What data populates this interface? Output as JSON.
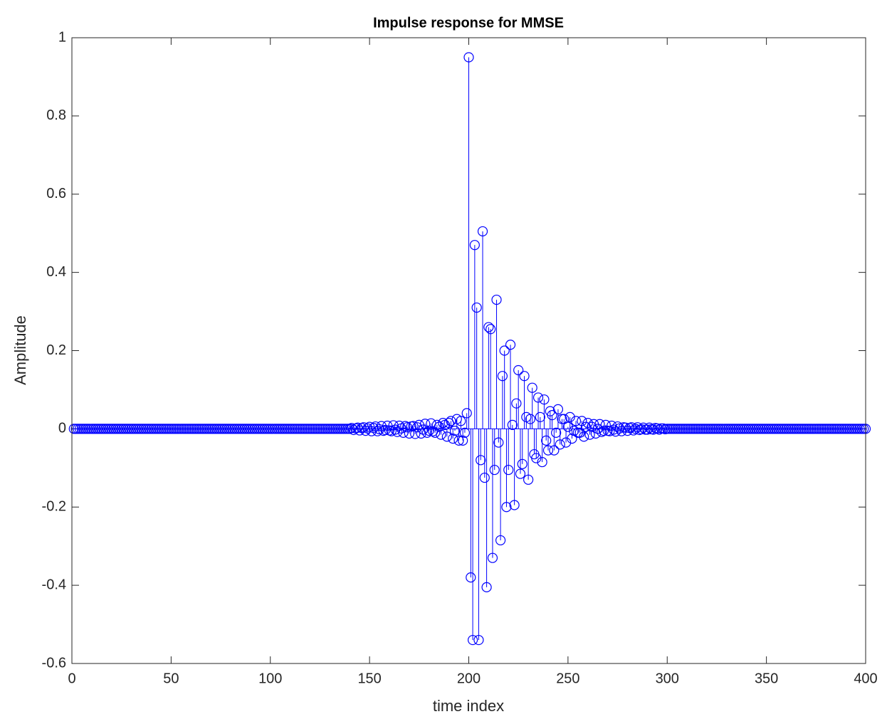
{
  "chart_data": {
    "type": "stem",
    "title": "Impulse response for MMSE",
    "x_label": "time index",
    "y_label": "Amplitude",
    "x": [
      1,
      2,
      3,
      4,
      5,
      6,
      7,
      8,
      9,
      10,
      11,
      12,
      13,
      14,
      15,
      16,
      17,
      18,
      19,
      20,
      21,
      22,
      23,
      24,
      25,
      26,
      27,
      28,
      29,
      30,
      31,
      32,
      33,
      34,
      35,
      36,
      37,
      38,
      39,
      40,
      41,
      42,
      43,
      44,
      45,
      46,
      47,
      48,
      49,
      50,
      51,
      52,
      53,
      54,
      55,
      56,
      57,
      58,
      59,
      60,
      61,
      62,
      63,
      64,
      65,
      66,
      67,
      68,
      69,
      70,
      71,
      72,
      73,
      74,
      75,
      76,
      77,
      78,
      79,
      80,
      81,
      82,
      83,
      84,
      85,
      86,
      87,
      88,
      89,
      90,
      91,
      92,
      93,
      94,
      95,
      96,
      97,
      98,
      99,
      100,
      101,
      102,
      103,
      104,
      105,
      106,
      107,
      108,
      109,
      110,
      111,
      112,
      113,
      114,
      115,
      116,
      117,
      118,
      119,
      120,
      121,
      122,
      123,
      124,
      125,
      126,
      127,
      128,
      129,
      130,
      131,
      132,
      133,
      134,
      135,
      136,
      137,
      138,
      139,
      140,
      141,
      142,
      143,
      144,
      145,
      146,
      147,
      148,
      149,
      150,
      151,
      152,
      153,
      154,
      155,
      156,
      157,
      158,
      159,
      160,
      161,
      162,
      163,
      164,
      165,
      166,
      167,
      168,
      169,
      170,
      171,
      172,
      173,
      174,
      175,
      176,
      177,
      178,
      179,
      180,
      181,
      182,
      183,
      184,
      185,
      186,
      187,
      188,
      189,
      190,
      191,
      192,
      193,
      194,
      195,
      196,
      197,
      198,
      199,
      200,
      201,
      202,
      203,
      204,
      205,
      206,
      207,
      208,
      209,
      210,
      211,
      212,
      213,
      214,
      215,
      216,
      217,
      218,
      219,
      220,
      221,
      222,
      223,
      224,
      225,
      226,
      227,
      228,
      229,
      230,
      231,
      232,
      233,
      234,
      235,
      236,
      237,
      238,
      239,
      240,
      241,
      242,
      243,
      244,
      245,
      246,
      247,
      248,
      249,
      250,
      251,
      252,
      253,
      254,
      255,
      256,
      257,
      258,
      259,
      260,
      261,
      262,
      263,
      264,
      265,
      266,
      267,
      268,
      269,
      270,
      271,
      272,
      273,
      274,
      275,
      276,
      277,
      278,
      279,
      280,
      281,
      282,
      283,
      284,
      285,
      286,
      287,
      288,
      289,
      290,
      291,
      292,
      293,
      294,
      295,
      296,
      297,
      298,
      299,
      300,
      301,
      302,
      303,
      304,
      305,
      306,
      307,
      308,
      309,
      310,
      311,
      312,
      313,
      314,
      315,
      316,
      317,
      318,
      319,
      320,
      321,
      322,
      323,
      324,
      325,
      326,
      327,
      328,
      329,
      330,
      331,
      332,
      333,
      334,
      335,
      336,
      337,
      338,
      339,
      340,
      341,
      342,
      343,
      344,
      345,
      346,
      347,
      348,
      349,
      350,
      351,
      352,
      353,
      354,
      355,
      356,
      357,
      358,
      359,
      360,
      361,
      362,
      363,
      364,
      365,
      366,
      367,
      368,
      369,
      370,
      371,
      372,
      373,
      374,
      375,
      376,
      377,
      378,
      379,
      380,
      381,
      382,
      383,
      384,
      385,
      386,
      387,
      388,
      389,
      390,
      391,
      392,
      393,
      394,
      395,
      396,
      397,
      398,
      399,
      400
    ],
    "values": [
      0,
      0,
      0,
      0,
      0,
      0,
      0,
      0,
      0,
      0,
      0,
      0,
      0,
      0,
      0,
      0,
      0,
      0,
      0,
      0,
      0,
      0,
      0,
      0,
      0,
      0,
      0,
      0,
      0,
      0,
      0,
      0,
      0,
      0,
      0,
      0,
      0,
      0,
      0,
      0,
      0,
      0,
      0,
      0,
      0,
      0,
      0,
      0,
      0,
      0,
      0,
      0,
      0,
      0,
      0,
      0,
      0,
      0,
      0,
      0,
      0,
      0,
      0,
      0,
      0,
      0,
      0,
      0,
      0,
      0,
      0,
      0,
      0,
      0,
      0,
      0,
      0,
      0,
      0,
      0,
      0,
      0,
      0,
      0,
      0,
      0,
      0,
      0,
      0,
      0,
      0,
      0,
      0,
      0,
      0,
      0,
      0,
      0,
      0,
      0,
      0,
      0,
      0,
      0,
      0,
      0,
      0,
      0,
      0,
      0,
      0,
      0,
      0,
      0,
      0,
      0,
      0,
      0,
      0,
      0,
      0,
      0,
      0,
      0,
      0,
      0,
      0,
      0,
      0,
      0,
      0,
      0,
      0,
      0,
      0,
      0,
      0,
      0,
      0,
      0,
      0.002,
      -0.003,
      0.001,
      0.003,
      -0.004,
      0.002,
      0.004,
      -0.005,
      0.001,
      0.005,
      -0.006,
      0.002,
      0.006,
      -0.006,
      -0.001,
      0.007,
      -0.005,
      -0.003,
      0.008,
      -0.004,
      -0.006,
      0.009,
      -0.002,
      -0.008,
      0.008,
      0.001,
      -0.01,
      0.007,
      0.004,
      -0.012,
      0.006,
      0.007,
      -0.013,
      0.004,
      0.01,
      -0.012,
      -0.002,
      0.013,
      -0.01,
      -0.005,
      0.014,
      -0.006,
      -0.01,
      0.01,
      0.005,
      -0.015,
      0.015,
      0.01,
      -0.02,
      0.015,
      0.02,
      -0.025,
      -0.005,
      0.025,
      -0.03,
      0.02,
      -0.03,
      -0.01,
      0.04,
      0.95,
      -0.38,
      -0.54,
      0.47,
      0.31,
      -0.54,
      -0.08,
      0.505,
      -0.125,
      -0.405,
      0.26,
      0.255,
      -0.33,
      -0.105,
      0.33,
      -0.035,
      -0.285,
      0.135,
      0.2,
      -0.2,
      -0.105,
      0.215,
      0.01,
      -0.195,
      0.065,
      0.15,
      -0.115,
      -0.09,
      0.135,
      0.03,
      -0.13,
      0.025,
      0.105,
      -0.065,
      -0.075,
      0.08,
      0.03,
      -0.085,
      0.075,
      -0.03,
      -0.055,
      0.045,
      0.035,
      -0.055,
      -0.01,
      0.05,
      -0.04,
      0.025,
      0.025,
      -0.035,
      0.005,
      0.03,
      -0.025,
      -0.005,
      0.02,
      -0.01,
      -0.01,
      0.02,
      -0.02,
      0.005,
      0.015,
      -0.015,
      0.005,
      0.012,
      -0.012,
      0,
      0.012,
      -0.008,
      -0.005,
      0.01,
      -0.005,
      -0.006,
      0.008,
      -0.002,
      -0.007,
      0.006,
      0.001,
      -0.006,
      0.004,
      0.003,
      -0.005,
      0.002,
      0.004,
      -0.004,
      0,
      0.004,
      -0.003,
      -0.001,
      0.003,
      -0.002,
      -0.002,
      0.003,
      -0.001,
      -0.002,
      0.002,
      0.001,
      -0.002,
      0.001,
      0.001,
      -0.001,
      0,
      0,
      0,
      0,
      0,
      0,
      0,
      0,
      0,
      0,
      0,
      0,
      0,
      0,
      0,
      0,
      0,
      0,
      0,
      0,
      0,
      0,
      0,
      0,
      0,
      0,
      0,
      0,
      0,
      0,
      0,
      0,
      0,
      0,
      0,
      0,
      0,
      0,
      0,
      0,
      0,
      0,
      0,
      0,
      0,
      0,
      0,
      0,
      0,
      0,
      0,
      0,
      0,
      0,
      0,
      0,
      0,
      0,
      0,
      0,
      0,
      0,
      0,
      0,
      0,
      0,
      0,
      0,
      0,
      0,
      0,
      0,
      0,
      0,
      0,
      0,
      0,
      0,
      0,
      0,
      0,
      0,
      0,
      0,
      0,
      0,
      0,
      0,
      0,
      0,
      0,
      0,
      0,
      0,
      0,
      0,
      0,
      0,
      0,
      0,
      0
    ],
    "color": "#0000ff",
    "xlim": [
      0,
      400
    ],
    "xticks": [
      0,
      50,
      100,
      150,
      200,
      250,
      300,
      350,
      400
    ],
    "ylim": [
      -0.6,
      1
    ],
    "yticks": [
      -0.6,
      -0.4,
      -0.2,
      0,
      0.2,
      0.4,
      0.6,
      0.8,
      1
    ]
  }
}
